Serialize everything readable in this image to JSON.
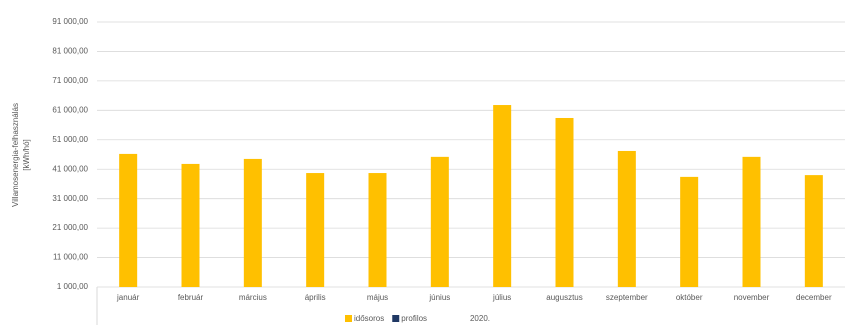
{
  "chart_data": {
    "type": "bar",
    "y_label": [
      "Villamosenergia-felhasználás",
      "[kWh/hó]"
    ],
    "x_label": "2020.",
    "categories": [
      "január",
      "február",
      "március",
      "április",
      "május",
      "június",
      "július",
      "augusztus",
      "szeptember",
      "október",
      "november",
      "december"
    ],
    "series": [
      {
        "name": "idősoros",
        "color": "#ffc000",
        "values": [
          46200,
          42800,
          44500,
          39700,
          39700,
          45200,
          62800,
          58400,
          47200,
          38400,
          45200,
          39000
        ]
      },
      {
        "name": "profilos",
        "color": "#203864",
        "values": [
          null,
          null,
          null,
          null,
          null,
          null,
          null,
          null,
          null,
          null,
          null,
          null
        ]
      }
    ],
    "ylim": [
      1000,
      91000
    ],
    "yticks": [
      {
        "value": 1000,
        "label": "1 000,00"
      },
      {
        "value": 11000,
        "label": "11 000,00"
      },
      {
        "value": 21000,
        "label": "21 000,00"
      },
      {
        "value": 31000,
        "label": "31 000,00"
      },
      {
        "value": 41000,
        "label": "41 000,00"
      },
      {
        "value": 51000,
        "label": "51 000,00"
      },
      {
        "value": 61000,
        "label": "61 000,00"
      },
      {
        "value": 71000,
        "label": "71 000,00"
      },
      {
        "value": 81000,
        "label": "81 000,00"
      },
      {
        "value": 91000,
        "label": "91 000,00"
      }
    ],
    "grid": true
  }
}
